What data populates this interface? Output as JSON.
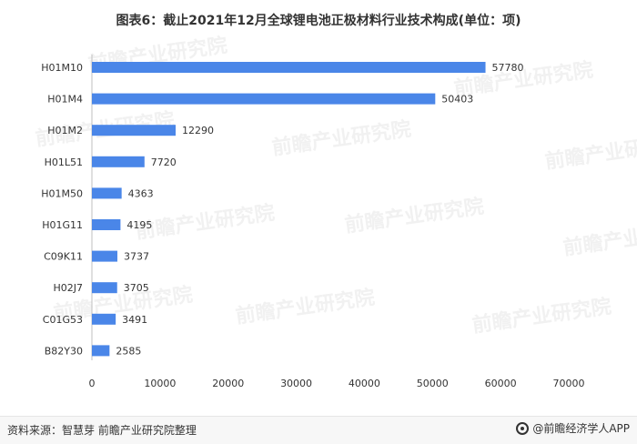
{
  "title": "图表6：截止2021年12月全球锂电池正极材料行业技术构成(单位：项)",
  "source": "资料来源：智慧芽 前瞻产业研究院整理",
  "brand": "@前瞻经济学人APP",
  "watermark": "前瞻产业研究院",
  "colors": {
    "bar": "#4a86e8",
    "grid": "#d9d9d9",
    "axis": "#bfbfbf",
    "text": "#333333"
  },
  "chart_data": {
    "type": "bar",
    "orientation": "horizontal",
    "categories": [
      "H01M10",
      "H01M4",
      "H01M2",
      "H01L51",
      "H01M50",
      "H01G11",
      "C09K11",
      "H02J7",
      "C01G53",
      "B82Y30"
    ],
    "values": [
      57780,
      50403,
      12290,
      7720,
      4363,
      4195,
      3737,
      3705,
      3491,
      2585
    ],
    "xlim": [
      0,
      70000
    ],
    "xticks": [
      "0",
      "10000",
      "20000",
      "30000",
      "40000",
      "50000",
      "60000",
      "70000"
    ],
    "grid": false
  }
}
